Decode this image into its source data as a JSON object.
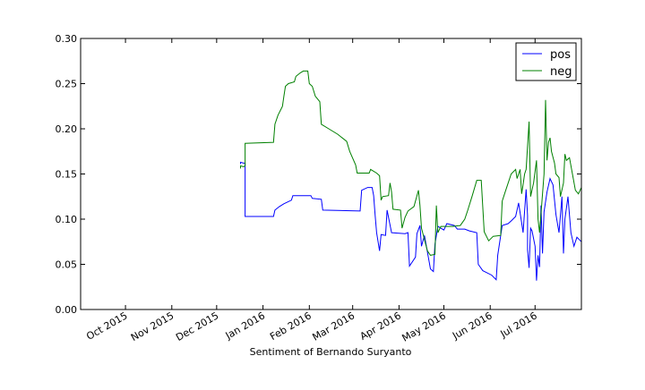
{
  "chart_data": {
    "type": "line",
    "title": "",
    "xlabel": "Sentiment of Bernando Suryanto",
    "ylabel": "",
    "x_range": [
      "2015-09-01",
      "2016-08-01"
    ],
    "ylim": [
      0.0,
      0.3
    ],
    "y_ticks": [
      "0.00",
      "0.05",
      "0.10",
      "0.15",
      "0.20",
      "0.25",
      "0.30"
    ],
    "y_tick_values": [
      0.0,
      0.05,
      0.1,
      0.15,
      0.2,
      0.25,
      0.3
    ],
    "x_ticks": [
      "Oct 2015",
      "Nov 2015",
      "Dec 2015",
      "Jan 2016",
      "Feb 2016",
      "Mar 2016",
      "Apr 2016",
      "May 2016",
      "Jun 2016",
      "Jul 2016"
    ],
    "x_tick_dates": [
      "2015-10-01",
      "2015-11-01",
      "2015-12-01",
      "2016-01-01",
      "2016-02-01",
      "2016-03-01",
      "2016-04-01",
      "2016-05-01",
      "2016-06-01",
      "2016-07-01"
    ],
    "grid": false,
    "legend_position": "top-right",
    "series": [
      {
        "name": "pos",
        "color": "#0000ff",
        "points": [
          [
            "2015-12-17",
            0.161
          ],
          [
            "2015-12-17",
            0.163
          ],
          [
            "2015-12-19",
            0.162
          ],
          [
            "2015-12-20",
            0.162
          ],
          [
            "2015-12-20",
            0.103
          ],
          [
            "2016-01-08",
            0.103
          ],
          [
            "2016-01-09",
            0.11
          ],
          [
            "2016-01-12",
            0.114
          ],
          [
            "2016-01-15",
            0.117
          ],
          [
            "2016-01-20",
            0.121
          ],
          [
            "2016-01-21",
            0.126
          ],
          [
            "2016-02-02",
            0.126
          ],
          [
            "2016-02-03",
            0.123
          ],
          [
            "2016-02-09",
            0.122
          ],
          [
            "2016-02-10",
            0.11
          ],
          [
            "2016-03-06",
            0.109
          ],
          [
            "2016-03-07",
            0.132
          ],
          [
            "2016-03-11",
            0.135
          ],
          [
            "2016-03-14",
            0.135
          ],
          [
            "2016-03-15",
            0.126
          ],
          [
            "2016-03-16",
            0.105
          ],
          [
            "2016-03-17",
            0.085
          ],
          [
            "2016-03-19",
            0.065
          ],
          [
            "2016-03-20",
            0.083
          ],
          [
            "2016-03-23",
            0.082
          ],
          [
            "2016-03-24",
            0.11
          ],
          [
            "2016-03-27",
            0.085
          ],
          [
            "2016-04-05",
            0.084
          ],
          [
            "2016-04-07",
            0.085
          ],
          [
            "2016-04-08",
            0.048
          ],
          [
            "2016-04-12",
            0.058
          ],
          [
            "2016-04-13",
            0.084
          ],
          [
            "2016-04-15",
            0.093
          ],
          [
            "2016-04-16",
            0.07
          ],
          [
            "2016-04-18",
            0.082
          ],
          [
            "2016-04-22",
            0.045
          ],
          [
            "2016-04-24",
            0.042
          ],
          [
            "2016-04-25",
            0.072
          ],
          [
            "2016-04-27",
            0.092
          ],
          [
            "2016-05-01",
            0.088
          ],
          [
            "2016-05-03",
            0.095
          ],
          [
            "2016-05-08",
            0.093
          ],
          [
            "2016-05-10",
            0.089
          ],
          [
            "2016-05-15",
            0.089
          ],
          [
            "2016-05-18",
            0.087
          ],
          [
            "2016-05-23",
            0.085
          ],
          [
            "2016-05-24",
            0.05
          ],
          [
            "2016-05-27",
            0.043
          ],
          [
            "2016-06-02",
            0.038
          ],
          [
            "2016-06-05",
            0.033
          ],
          [
            "2016-06-06",
            0.06
          ],
          [
            "2016-06-09",
            0.093
          ],
          [
            "2016-06-13",
            0.095
          ],
          [
            "2016-06-15",
            0.098
          ],
          [
            "2016-06-18",
            0.103
          ],
          [
            "2016-06-20",
            0.118
          ],
          [
            "2016-06-22",
            0.096
          ],
          [
            "2016-06-23",
            0.085
          ],
          [
            "2016-06-25",
            0.133
          ],
          [
            "2016-06-26",
            0.104
          ],
          [
            "2016-06-26",
            0.066
          ],
          [
            "2016-06-27",
            0.046
          ],
          [
            "2016-06-28",
            0.09
          ],
          [
            "2016-06-29",
            0.087
          ],
          [
            "2016-07-01",
            0.07
          ],
          [
            "2016-07-02",
            0.032
          ],
          [
            "2016-07-03",
            0.06
          ],
          [
            "2016-07-04",
            0.047
          ],
          [
            "2016-07-05",
            0.115
          ],
          [
            "2016-07-06",
            0.062
          ],
          [
            "2016-07-07",
            0.108
          ],
          [
            "2016-07-09",
            0.13
          ],
          [
            "2016-07-11",
            0.145
          ],
          [
            "2016-07-13",
            0.138
          ],
          [
            "2016-07-15",
            0.105
          ],
          [
            "2016-07-17",
            0.085
          ],
          [
            "2016-07-19",
            0.125
          ],
          [
            "2016-07-20",
            0.062
          ],
          [
            "2016-07-21",
            0.1
          ],
          [
            "2016-07-23",
            0.125
          ],
          [
            "2016-07-25",
            0.085
          ],
          [
            "2016-07-27",
            0.07
          ],
          [
            "2016-07-29",
            0.08
          ],
          [
            "2016-08-01",
            0.075
          ]
        ]
      },
      {
        "name": "neg",
        "color": "#008000",
        "points": [
          [
            "2015-12-17",
            0.156
          ],
          [
            "2015-12-17",
            0.159
          ],
          [
            "2015-12-19",
            0.158
          ],
          [
            "2015-12-20",
            0.159
          ],
          [
            "2015-12-20",
            0.184
          ],
          [
            "2016-01-08",
            0.185
          ],
          [
            "2016-01-09",
            0.205
          ],
          [
            "2016-01-11",
            0.215
          ],
          [
            "2016-01-14",
            0.225
          ],
          [
            "2016-01-15",
            0.236
          ],
          [
            "2016-01-16",
            0.247
          ],
          [
            "2016-01-18",
            0.25
          ],
          [
            "2016-01-22",
            0.252
          ],
          [
            "2016-01-23",
            0.258
          ],
          [
            "2016-01-26",
            0.262
          ],
          [
            "2016-01-28",
            0.264
          ],
          [
            "2016-01-31",
            0.264
          ],
          [
            "2016-02-01",
            0.25
          ],
          [
            "2016-02-03",
            0.247
          ],
          [
            "2016-02-05",
            0.236
          ],
          [
            "2016-02-08",
            0.23
          ],
          [
            "2016-02-09",
            0.205
          ],
          [
            "2016-02-14",
            0.2
          ],
          [
            "2016-02-20",
            0.194
          ],
          [
            "2016-02-26",
            0.186
          ],
          [
            "2016-02-28",
            0.175
          ],
          [
            "2016-03-03",
            0.16
          ],
          [
            "2016-03-04",
            0.151
          ],
          [
            "2016-03-12",
            0.151
          ],
          [
            "2016-03-13",
            0.155
          ],
          [
            "2016-03-17",
            0.151
          ],
          [
            "2016-03-19",
            0.148
          ],
          [
            "2016-03-20",
            0.121
          ],
          [
            "2016-03-21",
            0.125
          ],
          [
            "2016-03-25",
            0.126
          ],
          [
            "2016-03-26",
            0.14
          ],
          [
            "2016-03-27",
            0.13
          ],
          [
            "2016-03-28",
            0.111
          ],
          [
            "2016-04-02",
            0.11
          ],
          [
            "2016-04-03",
            0.09
          ],
          [
            "2016-04-05",
            0.102
          ],
          [
            "2016-04-07",
            0.109
          ],
          [
            "2016-04-11",
            0.114
          ],
          [
            "2016-04-14",
            0.132
          ],
          [
            "2016-04-15",
            0.115
          ],
          [
            "2016-04-16",
            0.09
          ],
          [
            "2016-04-20",
            0.065
          ],
          [
            "2016-04-22",
            0.06
          ],
          [
            "2016-04-25",
            0.061
          ],
          [
            "2016-04-26",
            0.115
          ],
          [
            "2016-04-27",
            0.085
          ],
          [
            "2016-04-29",
            0.092
          ],
          [
            "2016-05-07",
            0.092
          ],
          [
            "2016-05-12",
            0.093
          ],
          [
            "2016-05-15",
            0.1
          ],
          [
            "2016-05-17",
            0.11
          ],
          [
            "2016-05-20",
            0.126
          ],
          [
            "2016-05-23",
            0.143
          ],
          [
            "2016-05-26",
            0.143
          ],
          [
            "2016-05-28",
            0.086
          ],
          [
            "2016-05-31",
            0.076
          ],
          [
            "2016-06-03",
            0.081
          ],
          [
            "2016-06-08",
            0.082
          ],
          [
            "2016-06-09",
            0.12
          ],
          [
            "2016-06-11",
            0.13
          ],
          [
            "2016-06-15",
            0.15
          ],
          [
            "2016-06-18",
            0.155
          ],
          [
            "2016-06-19",
            0.145
          ],
          [
            "2016-06-21",
            0.155
          ],
          [
            "2016-06-22",
            0.128
          ],
          [
            "2016-06-23",
            0.138
          ],
          [
            "2016-06-24",
            0.15
          ],
          [
            "2016-06-25",
            0.155
          ],
          [
            "2016-06-27",
            0.208
          ],
          [
            "2016-06-28",
            0.125
          ],
          [
            "2016-06-30",
            0.14
          ],
          [
            "2016-07-02",
            0.165
          ],
          [
            "2016-07-03",
            0.1
          ],
          [
            "2016-07-04",
            0.085
          ],
          [
            "2016-07-07",
            0.15
          ],
          [
            "2016-07-08",
            0.232
          ],
          [
            "2016-07-09",
            0.165
          ],
          [
            "2016-07-10",
            0.185
          ],
          [
            "2016-07-11",
            0.19
          ],
          [
            "2016-07-12",
            0.175
          ],
          [
            "2016-07-14",
            0.162
          ],
          [
            "2016-07-15",
            0.15
          ],
          [
            "2016-07-17",
            0.146
          ],
          [
            "2016-07-18",
            0.125
          ],
          [
            "2016-07-20",
            0.14
          ],
          [
            "2016-07-21",
            0.172
          ],
          [
            "2016-07-22",
            0.165
          ],
          [
            "2016-07-24",
            0.168
          ],
          [
            "2016-07-26",
            0.15
          ],
          [
            "2016-07-28",
            0.132
          ],
          [
            "2016-07-30",
            0.128
          ],
          [
            "2016-08-01",
            0.135
          ]
        ]
      }
    ]
  }
}
